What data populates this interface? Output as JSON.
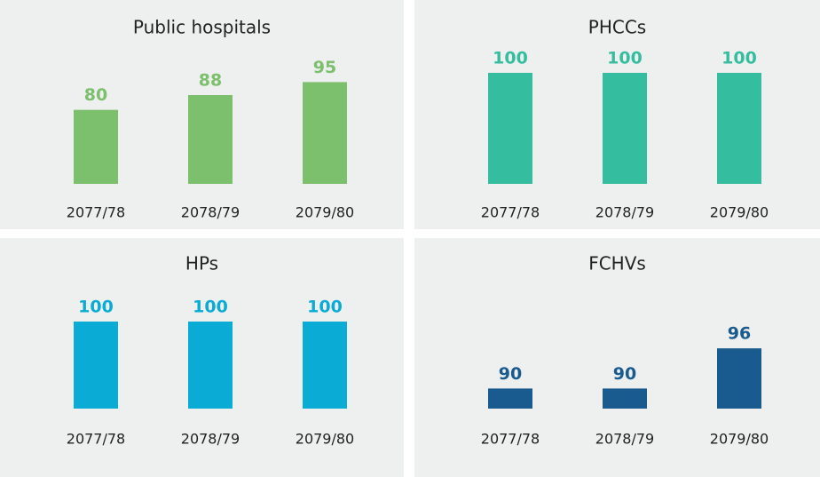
{
  "chart_data": [
    {
      "type": "bar",
      "title": "Public hospitals",
      "categories": [
        "2077/78",
        "2078/79",
        "2079/80"
      ],
      "values": [
        80,
        88,
        95
      ],
      "color": "#7cbf6c",
      "ylim": [
        40,
        100
      ]
    },
    {
      "type": "bar",
      "title": "PHCCs",
      "categories": [
        "2077/78",
        "2078/79",
        "2079/80"
      ],
      "values": [
        100,
        100,
        100
      ],
      "color": "#34bd9f",
      "ylim": [
        40,
        100
      ]
    },
    {
      "type": "bar",
      "title": "HPs",
      "categories": [
        "2077/78",
        "2078/79",
        "2079/80"
      ],
      "values": [
        100,
        100,
        100
      ],
      "color": "#0aabd4",
      "ylim": [
        0,
        100
      ]
    },
    {
      "type": "bar",
      "title": "FCHVs",
      "categories": [
        "2077/78",
        "2078/79",
        "2079/80"
      ],
      "values": [
        90,
        90,
        96
      ],
      "color": "#195b8e",
      "ylim": [
        87,
        100
      ]
    }
  ]
}
